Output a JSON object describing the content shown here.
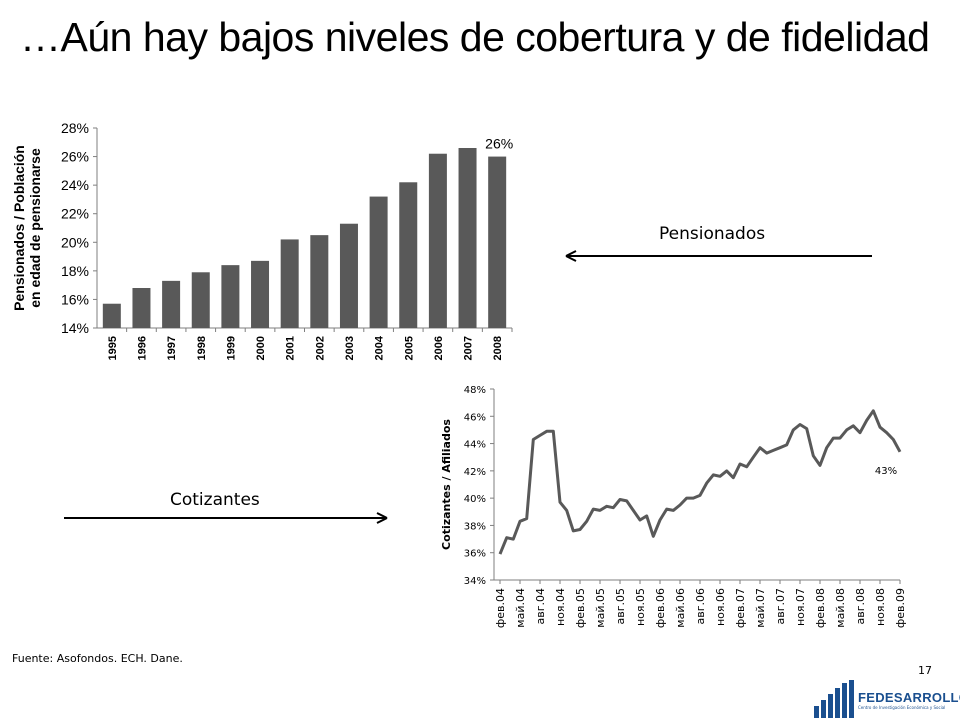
{
  "title": "…Aún hay bajos niveles de cobertura y de fidelidad",
  "arrows": {
    "pensionados": "Pensionados",
    "cotizantes": "Cotizantes"
  },
  "source": "Fuente: Asofondos. ECH. Dane.",
  "page_number": "17",
  "logo": {
    "name": "FEDESARROLLO",
    "tagline": "Centro de Investigación Económica y Social"
  },
  "colors": {
    "bar": "#595959",
    "line": "#595959",
    "axis": "#7f7f7f",
    "logo": "#1a4f8f"
  },
  "chart_data": [
    {
      "type": "bar",
      "title": "",
      "ylabel": "Pensionados / Población en edad de pensionarse",
      "ylabel_lines": [
        "Pensionados / Población",
        "en edad de pensionarse"
      ],
      "xlabel": "",
      "categories": [
        "1995",
        "1996",
        "1997",
        "1998",
        "1999",
        "2000",
        "2001",
        "2002",
        "2003",
        "2004",
        "2005",
        "2006",
        "2007",
        "2008"
      ],
      "values": [
        15.7,
        16.8,
        17.3,
        17.9,
        18.4,
        18.7,
        20.2,
        20.5,
        21.3,
        23.2,
        24.2,
        26.2,
        26.6,
        26.0
      ],
      "ylim": [
        14,
        28
      ],
      "yticks": [
        14,
        16,
        18,
        20,
        22,
        24,
        26,
        28
      ],
      "ytick_labels": [
        "14%",
        "16%",
        "18%",
        "20%",
        "22%",
        "24%",
        "26%",
        "28%"
      ],
      "annotation": {
        "category": "2008",
        "text": "26%"
      },
      "grid": false
    },
    {
      "type": "line",
      "title": "",
      "ylabel": "Cotizantes / Afiliados",
      "xlabel": "",
      "x_tick_labels": [
        "фев.04",
        "май.04",
        "авг.04",
        "ноя.04",
        "фев.05",
        "май.05",
        "авг.05",
        "ноя.05",
        "фев.06",
        "май.06",
        "авг.06",
        "ноя.06",
        "фев.07",
        "май.07",
        "авг.07",
        "ноя.07",
        "фев.08",
        "май.08",
        "авг.08",
        "ноя.08",
        "фев.09"
      ],
      "months": [
        "2004-02",
        "2004-03",
        "2004-04",
        "2004-05",
        "2004-06",
        "2004-07",
        "2004-08",
        "2004-09",
        "2004-10",
        "2004-11",
        "2004-12",
        "2005-01",
        "2005-02",
        "2005-03",
        "2005-04",
        "2005-05",
        "2005-06",
        "2005-07",
        "2005-08",
        "2005-09",
        "2005-10",
        "2005-11",
        "2005-12",
        "2006-01",
        "2006-02",
        "2006-03",
        "2006-04",
        "2006-05",
        "2006-06",
        "2006-07",
        "2006-08",
        "2006-09",
        "2006-10",
        "2006-11",
        "2006-12",
        "2007-01",
        "2007-02",
        "2007-03",
        "2007-04",
        "2007-05",
        "2007-06",
        "2007-07",
        "2007-08",
        "2007-09",
        "2007-10",
        "2007-11",
        "2007-12",
        "2008-01",
        "2008-02",
        "2008-03",
        "2008-04",
        "2008-05",
        "2008-06",
        "2008-07",
        "2008-08",
        "2008-09",
        "2008-10",
        "2008-11",
        "2008-12",
        "2009-01",
        "2009-02"
      ],
      "values": [
        35.9,
        37.1,
        37.0,
        38.3,
        38.5,
        44.3,
        44.6,
        44.9,
        44.9,
        39.7,
        39.1,
        37.6,
        37.7,
        38.3,
        39.2,
        39.1,
        39.4,
        39.3,
        39.9,
        39.8,
        39.1,
        38.4,
        38.7,
        37.2,
        38.4,
        39.2,
        39.1,
        39.5,
        40.0,
        40.0,
        40.2,
        41.1,
        41.7,
        41.6,
        42.0,
        41.5,
        42.5,
        42.3,
        43.0,
        43.7,
        43.3,
        43.5,
        43.7,
        43.9,
        45.0,
        45.4,
        45.1,
        43.1,
        42.4,
        43.7,
        44.4,
        44.4,
        45.0,
        45.3,
        44.8,
        45.7,
        46.4,
        45.2,
        44.8,
        44.3,
        43.4
      ],
      "ylim": [
        34,
        48
      ],
      "yticks": [
        34,
        36,
        38,
        40,
        42,
        44,
        46,
        48
      ],
      "ytick_labels": [
        "34%",
        "36%",
        "38%",
        "40%",
        "42%",
        "44%",
        "46%",
        "48%"
      ],
      "annotation": {
        "text": "43%"
      },
      "grid": false
    }
  ]
}
